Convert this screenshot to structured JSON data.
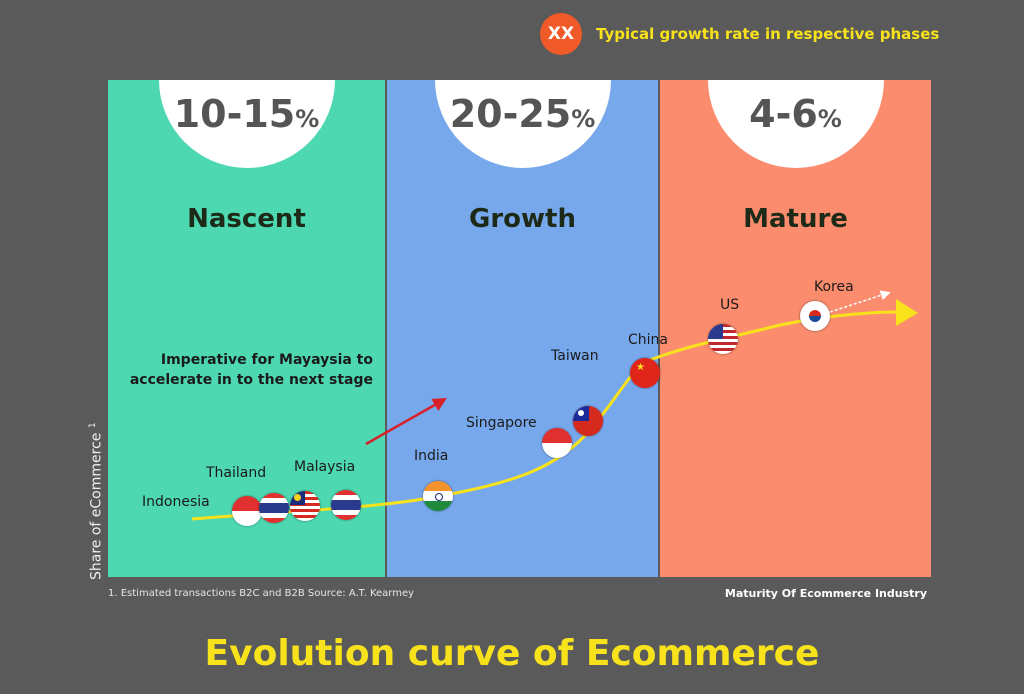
{
  "legend": {
    "badge_text": "XX",
    "text": "Typical growth rate in respective phases"
  },
  "phases": [
    {
      "name": "Nascent",
      "rate": "10-15",
      "unit": "%",
      "color": "#4dd8b2"
    },
    {
      "name": "Growth",
      "rate": "20-25",
      "unit": "%",
      "color": "#78a8ec"
    },
    {
      "name": "Mature",
      "rate": "4-6",
      "unit": "%",
      "color": "#fb8c6d"
    }
  ],
  "countries": [
    "Indonesia",
    "Thailand",
    "Malaysia",
    "India",
    "Singapore",
    "Taiwan",
    "China",
    "US",
    "Korea"
  ],
  "note": "Imperative for Mayaysia to accelerate in to the next stage",
  "y_axis_label": "Share of eCommerce",
  "y_axis_footnote_marker": "1",
  "x_axis_label": "Maturity Of Ecommerce Industry",
  "footnote": "1. Estimated transactions B2C and B2B Source: A.T. Kearmey",
  "title": "Evolution curve of Ecommerce",
  "colors": {
    "curve": "#f7e21b",
    "arrow": "#d8202a",
    "title": "#f7e21b",
    "badge": "#f05a28"
  }
}
